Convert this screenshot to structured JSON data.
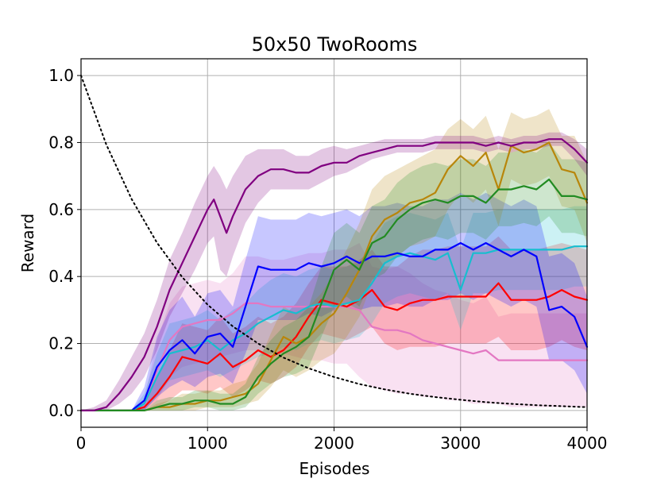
{
  "chart_data": {
    "type": "line",
    "title": "50x50 TwoRooms",
    "xlabel": "Episodes",
    "ylabel": "Reward",
    "xlim": [
      0,
      4000
    ],
    "ylim": [
      -0.05,
      1.05
    ],
    "xticks": [
      0,
      1000,
      2000,
      3000,
      4000
    ],
    "yticks": [
      0.0,
      0.2,
      0.4,
      0.6,
      0.8,
      1.0
    ],
    "xtick_labels": [
      "0",
      "1000",
      "2000",
      "3000",
      "4000"
    ],
    "ytick_labels": [
      "0.0",
      "0.2",
      "0.4",
      "0.6",
      "0.8",
      "1.0"
    ],
    "grid": true,
    "legend": "none",
    "series": [
      {
        "color": "#e377c2",
        "x": [
          0,
          200,
          400,
          500,
          600,
          700,
          800,
          900,
          1000,
          1100,
          1200,
          1300,
          1400,
          1500,
          1600,
          1700,
          1800,
          1900,
          2000,
          2100,
          2200,
          2300,
          2400,
          2500,
          2600,
          2700,
          2800,
          2900,
          3000,
          3100,
          3200,
          3300,
          3400,
          3500,
          3600,
          3700,
          3800,
          3900,
          4000
        ],
        "y": [
          0,
          0,
          0,
          0.01,
          0.12,
          0.21,
          0.25,
          0.26,
          0.27,
          0.27,
          0.29,
          0.32,
          0.32,
          0.31,
          0.31,
          0.31,
          0.31,
          0.31,
          0.31,
          0.31,
          0.3,
          0.25,
          0.24,
          0.24,
          0.23,
          0.21,
          0.2,
          0.19,
          0.18,
          0.17,
          0.18,
          0.15,
          0.15,
          0.15,
          0.15,
          0.15,
          0.15,
          0.15,
          0.15
        ],
        "lo": [
          0,
          0,
          0,
          0,
          0.03,
          0.1,
          0.13,
          0.14,
          0.15,
          0.16,
          0.17,
          0.18,
          0.18,
          0.17,
          0.17,
          0.16,
          0.15,
          0.15,
          0.14,
          0.14,
          0.1,
          0.07,
          0.06,
          0.05,
          0.05,
          0.04,
          0.04,
          0.03,
          0.03,
          0.02,
          0.02,
          0.02,
          0.01,
          0.01,
          0.01,
          0.01,
          0.01,
          0.01,
          0.01
        ],
        "hi": [
          0,
          0,
          0,
          0.03,
          0.21,
          0.32,
          0.37,
          0.38,
          0.39,
          0.38,
          0.41,
          0.46,
          0.46,
          0.45,
          0.45,
          0.46,
          0.47,
          0.47,
          0.48,
          0.48,
          0.5,
          0.43,
          0.42,
          0.43,
          0.41,
          0.38,
          0.36,
          0.35,
          0.33,
          0.32,
          0.34,
          0.28,
          0.29,
          0.29,
          0.29,
          0.29,
          0.29,
          0.29,
          0.29
        ]
      },
      {
        "color": "#ff0000",
        "x": [
          0,
          200,
          400,
          500,
          600,
          700,
          800,
          900,
          1000,
          1100,
          1200,
          1300,
          1400,
          1500,
          1600,
          1700,
          1800,
          1900,
          2000,
          2100,
          2200,
          2300,
          2400,
          2500,
          2600,
          2700,
          2800,
          2900,
          3000,
          3100,
          3200,
          3300,
          3400,
          3500,
          3600,
          3700,
          3800,
          3900,
          4000
        ],
        "y": [
          0,
          0,
          0,
          0.01,
          0.05,
          0.1,
          0.16,
          0.15,
          0.14,
          0.17,
          0.13,
          0.15,
          0.18,
          0.16,
          0.18,
          0.22,
          0.28,
          0.33,
          0.32,
          0.31,
          0.33,
          0.36,
          0.31,
          0.3,
          0.32,
          0.33,
          0.33,
          0.34,
          0.34,
          0.34,
          0.34,
          0.38,
          0.33,
          0.33,
          0.33,
          0.34,
          0.36,
          0.34,
          0.33
        ],
        "lo": [
          0,
          0,
          0,
          0,
          0.01,
          0.03,
          0.06,
          0.06,
          0.05,
          0.07,
          0.04,
          0.06,
          0.09,
          0.08,
          0.1,
          0.13,
          0.19,
          0.23,
          0.22,
          0.21,
          0.23,
          0.25,
          0.2,
          0.18,
          0.19,
          0.19,
          0.19,
          0.2,
          0.2,
          0.2,
          0.2,
          0.22,
          0.18,
          0.18,
          0.18,
          0.19,
          0.21,
          0.19,
          0.18
        ],
        "hi": [
          0,
          0,
          0,
          0.03,
          0.1,
          0.18,
          0.26,
          0.25,
          0.24,
          0.28,
          0.23,
          0.25,
          0.28,
          0.26,
          0.28,
          0.32,
          0.38,
          0.43,
          0.43,
          0.43,
          0.45,
          0.48,
          0.43,
          0.43,
          0.46,
          0.48,
          0.48,
          0.49,
          0.49,
          0.49,
          0.49,
          0.52,
          0.48,
          0.48,
          0.48,
          0.49,
          0.5,
          0.49,
          0.48
        ]
      },
      {
        "color": "#17becf",
        "x": [
          0,
          200,
          400,
          500,
          600,
          700,
          800,
          900,
          1000,
          1100,
          1200,
          1300,
          1400,
          1500,
          1600,
          1700,
          1800,
          1900,
          2000,
          2100,
          2200,
          2300,
          2400,
          2500,
          2600,
          2700,
          2800,
          2900,
          3000,
          3100,
          3200,
          3300,
          3400,
          3500,
          3600,
          3700,
          3800,
          3900,
          4000
        ],
        "y": [
          0,
          0,
          0,
          0.02,
          0.1,
          0.17,
          0.18,
          0.19,
          0.21,
          0.18,
          0.21,
          0.23,
          0.26,
          0.28,
          0.3,
          0.29,
          0.31,
          0.32,
          0.31,
          0.32,
          0.33,
          0.38,
          0.44,
          0.46,
          0.47,
          0.46,
          0.45,
          0.47,
          0.36,
          0.47,
          0.47,
          0.48,
          0.48,
          0.48,
          0.48,
          0.48,
          0.48,
          0.49,
          0.49
        ],
        "lo": [
          0,
          0,
          0,
          0,
          0.04,
          0.09,
          0.1,
          0.11,
          0.12,
          0.1,
          0.12,
          0.14,
          0.16,
          0.17,
          0.19,
          0.18,
          0.2,
          0.21,
          0.2,
          0.21,
          0.22,
          0.26,
          0.32,
          0.34,
          0.35,
          0.34,
          0.33,
          0.35,
          0.24,
          0.35,
          0.35,
          0.36,
          0.36,
          0.36,
          0.36,
          0.36,
          0.36,
          0.37,
          0.37
        ],
        "hi": [
          0,
          0,
          0,
          0.05,
          0.17,
          0.26,
          0.27,
          0.28,
          0.3,
          0.27,
          0.3,
          0.32,
          0.36,
          0.39,
          0.41,
          0.4,
          0.42,
          0.43,
          0.42,
          0.43,
          0.44,
          0.5,
          0.56,
          0.58,
          0.59,
          0.58,
          0.57,
          0.59,
          0.48,
          0.59,
          0.59,
          0.6,
          0.6,
          0.6,
          0.6,
          0.6,
          0.6,
          0.61,
          0.61
        ]
      },
      {
        "color": "#0000ff",
        "x": [
          0,
          200,
          400,
          500,
          600,
          700,
          800,
          900,
          1000,
          1100,
          1200,
          1300,
          1400,
          1500,
          1600,
          1700,
          1800,
          1900,
          2000,
          2100,
          2200,
          2300,
          2400,
          2500,
          2600,
          2700,
          2800,
          2900,
          3000,
          3100,
          3200,
          3300,
          3400,
          3500,
          3600,
          3700,
          3800,
          3900,
          4000
        ],
        "y": [
          0,
          0,
          0,
          0.03,
          0.13,
          0.18,
          0.21,
          0.17,
          0.22,
          0.23,
          0.19,
          0.31,
          0.43,
          0.42,
          0.42,
          0.42,
          0.44,
          0.43,
          0.44,
          0.46,
          0.44,
          0.46,
          0.46,
          0.47,
          0.46,
          0.46,
          0.48,
          0.48,
          0.5,
          0.48,
          0.5,
          0.48,
          0.46,
          0.48,
          0.46,
          0.3,
          0.31,
          0.28,
          0.19
        ],
        "lo": [
          0,
          0,
          0,
          0,
          0.04,
          0.07,
          0.09,
          0.07,
          0.1,
          0.11,
          0.08,
          0.17,
          0.27,
          0.27,
          0.27,
          0.27,
          0.29,
          0.28,
          0.3,
          0.32,
          0.3,
          0.31,
          0.31,
          0.32,
          0.31,
          0.31,
          0.33,
          0.33,
          0.35,
          0.33,
          0.35,
          0.33,
          0.31,
          0.33,
          0.31,
          0.15,
          0.15,
          0.12,
          0.05
        ],
        "hi": [
          0,
          0,
          0,
          0.07,
          0.22,
          0.3,
          0.34,
          0.28,
          0.35,
          0.36,
          0.31,
          0.45,
          0.58,
          0.57,
          0.57,
          0.57,
          0.59,
          0.58,
          0.59,
          0.6,
          0.58,
          0.61,
          0.61,
          0.62,
          0.61,
          0.61,
          0.63,
          0.63,
          0.65,
          0.63,
          0.65,
          0.63,
          0.61,
          0.63,
          0.61,
          0.46,
          0.47,
          0.44,
          0.34
        ]
      },
      {
        "color": "#b8860b",
        "x": [
          0,
          200,
          400,
          500,
          600,
          700,
          800,
          900,
          1000,
          1100,
          1200,
          1300,
          1400,
          1500,
          1600,
          1700,
          1800,
          1900,
          2000,
          2100,
          2200,
          2300,
          2400,
          2500,
          2600,
          2700,
          2800,
          2900,
          3000,
          3100,
          3200,
          3300,
          3400,
          3500,
          3600,
          3700,
          3800,
          3900,
          4000
        ],
        "y": [
          0,
          0,
          0,
          0,
          0.01,
          0.01,
          0.02,
          0.02,
          0.03,
          0.03,
          0.04,
          0.05,
          0.08,
          0.15,
          0.22,
          0.2,
          0.22,
          0.26,
          0.29,
          0.35,
          0.42,
          0.52,
          0.57,
          0.59,
          0.62,
          0.63,
          0.65,
          0.72,
          0.76,
          0.73,
          0.77,
          0.66,
          0.79,
          0.77,
          0.78,
          0.8,
          0.72,
          0.71,
          0.62
        ],
        "lo": [
          0,
          0,
          0,
          0,
          0,
          0,
          0,
          0,
          0.01,
          0.01,
          0.01,
          0.02,
          0.03,
          0.07,
          0.12,
          0.1,
          0.12,
          0.15,
          0.17,
          0.22,
          0.28,
          0.38,
          0.44,
          0.46,
          0.49,
          0.5,
          0.52,
          0.6,
          0.65,
          0.62,
          0.66,
          0.55,
          0.69,
          0.67,
          0.68,
          0.7,
          0.61,
          0.6,
          0.5
        ],
        "hi": [
          0,
          0,
          0,
          0,
          0.02,
          0.03,
          0.05,
          0.05,
          0.06,
          0.06,
          0.08,
          0.09,
          0.14,
          0.23,
          0.31,
          0.29,
          0.31,
          0.35,
          0.41,
          0.48,
          0.56,
          0.66,
          0.7,
          0.72,
          0.74,
          0.76,
          0.78,
          0.84,
          0.87,
          0.84,
          0.88,
          0.78,
          0.89,
          0.87,
          0.88,
          0.9,
          0.82,
          0.82,
          0.74
        ]
      },
      {
        "color": "#228b22",
        "x": [
          0,
          200,
          400,
          500,
          600,
          700,
          800,
          900,
          1000,
          1100,
          1200,
          1300,
          1400,
          1500,
          1600,
          1700,
          1800,
          1900,
          2000,
          2100,
          2200,
          2300,
          2400,
          2500,
          2600,
          2700,
          2800,
          2900,
          3000,
          3100,
          3200,
          3300,
          3400,
          3500,
          3600,
          3700,
          3800,
          3900,
          4000
        ],
        "y": [
          0,
          0,
          0,
          0,
          0.01,
          0.02,
          0.02,
          0.03,
          0.03,
          0.02,
          0.02,
          0.04,
          0.1,
          0.14,
          0.17,
          0.19,
          0.22,
          0.32,
          0.42,
          0.45,
          0.42,
          0.5,
          0.52,
          0.57,
          0.6,
          0.62,
          0.63,
          0.62,
          0.64,
          0.64,
          0.62,
          0.66,
          0.66,
          0.67,
          0.66,
          0.69,
          0.64,
          0.64,
          0.63
        ],
        "lo": [
          0,
          0,
          0,
          0,
          0,
          0,
          0,
          0.01,
          0.01,
          0,
          0,
          0.01,
          0.05,
          0.08,
          0.1,
          0.11,
          0.13,
          0.22,
          0.31,
          0.34,
          0.31,
          0.39,
          0.41,
          0.46,
          0.49,
          0.51,
          0.52,
          0.51,
          0.53,
          0.53,
          0.51,
          0.55,
          0.55,
          0.56,
          0.55,
          0.58,
          0.53,
          0.53,
          0.52
        ],
        "hi": [
          0,
          0,
          0,
          0,
          0.03,
          0.04,
          0.04,
          0.06,
          0.06,
          0.05,
          0.05,
          0.08,
          0.16,
          0.21,
          0.25,
          0.27,
          0.31,
          0.43,
          0.53,
          0.56,
          0.53,
          0.61,
          0.63,
          0.68,
          0.71,
          0.73,
          0.74,
          0.73,
          0.75,
          0.75,
          0.73,
          0.77,
          0.77,
          0.78,
          0.77,
          0.8,
          0.75,
          0.75,
          0.74
        ]
      },
      {
        "color": "#800080",
        "x": [
          0,
          100,
          200,
          300,
          400,
          500,
          600,
          700,
          800,
          900,
          1000,
          1050,
          1100,
          1150,
          1200,
          1300,
          1400,
          1500,
          1600,
          1700,
          1800,
          1900,
          2000,
          2100,
          2200,
          2300,
          2400,
          2500,
          2600,
          2700,
          2800,
          2900,
          3000,
          3100,
          3200,
          3300,
          3400,
          3500,
          3600,
          3700,
          3800,
          3900,
          4000
        ],
        "y": [
          0,
          0,
          0.01,
          0.05,
          0.1,
          0.16,
          0.25,
          0.36,
          0.44,
          0.52,
          0.6,
          0.63,
          0.58,
          0.53,
          0.58,
          0.66,
          0.7,
          0.72,
          0.72,
          0.71,
          0.71,
          0.73,
          0.74,
          0.74,
          0.76,
          0.77,
          0.78,
          0.79,
          0.79,
          0.79,
          0.8,
          0.8,
          0.8,
          0.8,
          0.79,
          0.8,
          0.79,
          0.8,
          0.8,
          0.81,
          0.81,
          0.78,
          0.74
        ],
        "lo": [
          0,
          0,
          0,
          0.02,
          0.05,
          0.1,
          0.18,
          0.28,
          0.35,
          0.42,
          0.5,
          0.52,
          0.42,
          0.4,
          0.46,
          0.56,
          0.62,
          0.66,
          0.66,
          0.66,
          0.66,
          0.68,
          0.7,
          0.71,
          0.73,
          0.75,
          0.76,
          0.77,
          0.77,
          0.77,
          0.78,
          0.78,
          0.78,
          0.78,
          0.77,
          0.78,
          0.77,
          0.78,
          0.78,
          0.79,
          0.79,
          0.75,
          0.7
        ],
        "hi": [
          0,
          0.01,
          0.03,
          0.09,
          0.16,
          0.23,
          0.33,
          0.45,
          0.53,
          0.62,
          0.7,
          0.73,
          0.7,
          0.66,
          0.7,
          0.76,
          0.78,
          0.78,
          0.78,
          0.76,
          0.76,
          0.78,
          0.79,
          0.78,
          0.79,
          0.8,
          0.81,
          0.81,
          0.81,
          0.81,
          0.82,
          0.82,
          0.82,
          0.82,
          0.81,
          0.82,
          0.81,
          0.82,
          0.82,
          0.83,
          0.83,
          0.81,
          0.78
        ]
      }
    ],
    "reference_curve": {
      "style": "dotted",
      "color": "#000000",
      "x": [
        0,
        200,
        400,
        600,
        800,
        1000,
        1200,
        1400,
        1600,
        1800,
        2000,
        2200,
        2400,
        2600,
        2800,
        3000,
        3200,
        3400,
        3600,
        3800,
        4000
      ],
      "y": [
        1.0,
        0.794,
        0.631,
        0.501,
        0.398,
        0.316,
        0.251,
        0.2,
        0.158,
        0.126,
        0.1,
        0.079,
        0.063,
        0.05,
        0.04,
        0.032,
        0.025,
        0.02,
        0.016,
        0.013,
        0.01
      ]
    }
  }
}
